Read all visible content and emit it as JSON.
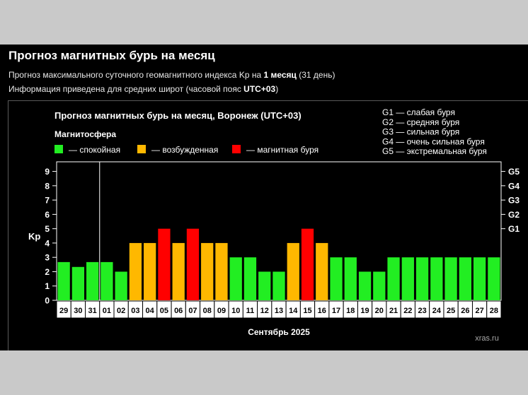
{
  "header": {
    "title": "Прогноз магнитных бурь на месяц",
    "line1_a": "Прогноз максимального суточного геомагнитного индекса Kp на ",
    "line1_b": "1 месяц",
    "line1_c": " (31 день)",
    "line2_a": "Информация приведена для средних широт (часовой пояс ",
    "line2_b": "UTC+03",
    "line2_c": ")"
  },
  "colors": {
    "calm": "#22ee22",
    "excited": "#ffb800",
    "storm": "#ff0000",
    "background": "#000000",
    "grid": "#ffffff"
  },
  "chart_data": {
    "type": "bar",
    "title": "Прогноз магнитных бурь на месяц, Воронеж (UTC+03)",
    "legend_title": "Магнитосфера",
    "legend": [
      {
        "key": "calm",
        "label": "— спокойная"
      },
      {
        "key": "excited",
        "label": "— возбужденная"
      },
      {
        "key": "storm",
        "label": "— магнитная буря"
      }
    ],
    "g_scale": [
      "G1 — слабая буря",
      "G2 — средняя буря",
      "G3 — сильная буря",
      "G4 — очень сильная буря",
      "G5 — экстремальная буря"
    ],
    "ylabel": "Kp",
    "xlabel": "Сентябрь 2025",
    "ylim": [
      0,
      9.67
    ],
    "yticks": [
      0,
      1,
      2,
      3,
      4,
      5,
      6,
      7,
      8,
      9
    ],
    "right_ticks": [
      {
        "label": "G1",
        "value": 5
      },
      {
        "label": "G2",
        "value": 6
      },
      {
        "label": "G3",
        "value": 7
      },
      {
        "label": "G4",
        "value": 8
      },
      {
        "label": "G5",
        "value": 9
      }
    ],
    "categories": [
      "29",
      "30",
      "31",
      "01",
      "02",
      "03",
      "04",
      "05",
      "06",
      "07",
      "08",
      "09",
      "10",
      "11",
      "12",
      "13",
      "14",
      "15",
      "16",
      "17",
      "18",
      "19",
      "20",
      "21",
      "22",
      "23",
      "24",
      "25",
      "26",
      "27",
      "28"
    ],
    "values": [
      2.67,
      2.33,
      2.67,
      2.67,
      2,
      4,
      4,
      5,
      4,
      5,
      4,
      4,
      3,
      3,
      2,
      2,
      4,
      5,
      4,
      3,
      3,
      2,
      2,
      3,
      3,
      3,
      3,
      3,
      3,
      3,
      3
    ],
    "levels": [
      "calm",
      "calm",
      "calm",
      "calm",
      "calm",
      "excited",
      "excited",
      "storm",
      "excited",
      "storm",
      "excited",
      "excited",
      "calm",
      "calm",
      "calm",
      "calm",
      "excited",
      "storm",
      "excited",
      "calm",
      "calm",
      "calm",
      "calm",
      "calm",
      "calm",
      "calm",
      "calm",
      "calm",
      "calm",
      "calm",
      "calm"
    ],
    "separator_after": "31",
    "watermark": "xras.ru"
  }
}
